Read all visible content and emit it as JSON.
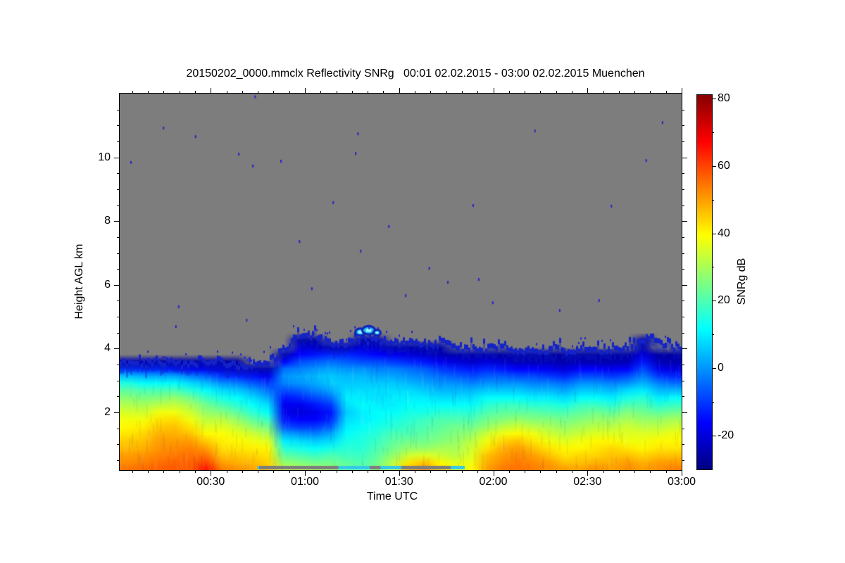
{
  "chart_data": {
    "type": "heatmap",
    "title": "20150202_0000.mmclx Reflectivity SNRg   00:01 02.02.2015 - 03:00 02.02.2015 Muenchen",
    "xlabel": "Time UTC",
    "ylabel": "Height AGL km",
    "x_range": [
      "00:01",
      "03:00"
    ],
    "x_ticks": [
      {
        "label": "00:30",
        "minute": 30
      },
      {
        "label": "01:00",
        "minute": 60
      },
      {
        "label": "01:30",
        "minute": 90
      },
      {
        "label": "02:00",
        "minute": 120
      },
      {
        "label": "02:30",
        "minute": 150
      },
      {
        "label": "03:00",
        "minute": 180
      }
    ],
    "x_minor_interval_min": 5,
    "y_range_km": [
      0.19,
      12
    ],
    "y_ticks_km": [
      2,
      4,
      6,
      8,
      10
    ],
    "y_minor_interval_km": 0.5,
    "colorbar": {
      "label": "SNRg dB",
      "range_db": [
        -30,
        81
      ],
      "ticks_db": [
        80,
        60,
        40,
        20,
        0,
        -20
      ],
      "minor_interval_db": 10,
      "palette": "jet"
    },
    "no_signal_color": "#7d7d7d",
    "speck_color": "#2323c8",
    "fringe_color": "#1423c8",
    "time_cols": 36,
    "height_rows": 20,
    "row_height_km_min": 0.2,
    "row_height_km_max": 4.5,
    "cloud_top_km": [
      3.55,
      3.5,
      3.55,
      3.6,
      3.5,
      3.6,
      3.65,
      3.5,
      3.45,
      3.5,
      3.9,
      4.4,
      4.45,
      4.2,
      4.15,
      4.3,
      4.25,
      4.2,
      4.25,
      4.1,
      4.2,
      4.05,
      4.0,
      4.0,
      4.0,
      3.95,
      3.95,
      4.0,
      3.95,
      4.05,
      4.0,
      4.0,
      4.05,
      4.45,
      4.1,
      4.05
    ],
    "snr_grid_db": [
      [
        55,
        52,
        50,
        47,
        45,
        42,
        40,
        38,
        35,
        31,
        27,
        22,
        15,
        5,
        -10,
        -25,
        null,
        null,
        null,
        null
      ],
      [
        56,
        53,
        51,
        48,
        46,
        44,
        41,
        38,
        34,
        30,
        25,
        20,
        12,
        3,
        -12,
        -25,
        null,
        null,
        null,
        null
      ],
      [
        57,
        55,
        53,
        51,
        50,
        48,
        45,
        42,
        38,
        32,
        26,
        20,
        12,
        2,
        -12,
        -25,
        null,
        null,
        null,
        null
      ],
      [
        58,
        56,
        54,
        52,
        50,
        48,
        46,
        43,
        38,
        33,
        28,
        20,
        12,
        2,
        -14,
        -26,
        null,
        null,
        null,
        null
      ],
      [
        57,
        56,
        55,
        53,
        50,
        46,
        42,
        38,
        34,
        30,
        24,
        16,
        8,
        -2,
        -16,
        -26,
        null,
        null,
        null,
        null
      ],
      [
        66,
        60,
        55,
        50,
        45,
        40,
        36,
        32,
        28,
        24,
        18,
        12,
        5,
        -5,
        -18,
        -26,
        null,
        null,
        null,
        null
      ],
      [
        54,
        50,
        46,
        43,
        41,
        39,
        36,
        32,
        26,
        20,
        14,
        8,
        0,
        -10,
        -20,
        -26,
        null,
        null,
        null,
        null
      ],
      [
        52,
        48,
        45,
        42,
        40,
        37,
        33,
        28,
        22,
        16,
        12,
        6,
        -2,
        -12,
        -22,
        -26,
        null,
        null,
        null,
        null
      ],
      [
        50,
        47,
        44,
        41,
        38,
        34,
        28,
        22,
        16,
        12,
        8,
        2,
        -6,
        -14,
        -24,
        null,
        null,
        null,
        null,
        null
      ],
      [
        46,
        44,
        42,
        40,
        36,
        30,
        24,
        18,
        12,
        8,
        2,
        -4,
        -10,
        -18,
        -25,
        null,
        null,
        null,
        null,
        null
      ],
      [
        34,
        28,
        22,
        16,
        10,
        2,
        -8,
        -14,
        -18,
        -18,
        -14,
        -8,
        -2,
        0,
        -4,
        -16,
        -25,
        null,
        null,
        null
      ],
      [
        32,
        26,
        20,
        14,
        8,
        0,
        -10,
        -16,
        -20,
        -18,
        -12,
        -6,
        0,
        2,
        -2,
        -8,
        -16,
        -20,
        -26,
        null
      ],
      [
        30,
        24,
        18,
        12,
        6,
        -2,
        -10,
        -16,
        -18,
        -14,
        -8,
        -2,
        2,
        4,
        0,
        -6,
        -14,
        -22,
        -26,
        null
      ],
      [
        28,
        24,
        20,
        14,
        8,
        2,
        -6,
        -12,
        -14,
        -10,
        -4,
        2,
        6,
        6,
        2,
        -4,
        -12,
        -24,
        null,
        null
      ],
      [
        24,
        22,
        18,
        16,
        14,
        12,
        10,
        8,
        6,
        8,
        10,
        8,
        6,
        4,
        0,
        -6,
        -12,
        -24,
        null,
        null
      ],
      [
        22,
        20,
        18,
        16,
        15,
        14,
        12,
        10,
        10,
        12,
        10,
        8,
        6,
        4,
        0,
        -8,
        -14,
        -20,
        -26,
        null
      ],
      [
        26,
        24,
        22,
        20,
        18,
        16,
        14,
        12,
        12,
        10,
        8,
        8,
        6,
        2,
        -2,
        -8,
        -16,
        -22,
        -26,
        null
      ],
      [
        36,
        32,
        28,
        24,
        22,
        20,
        16,
        14,
        12,
        10,
        10,
        8,
        6,
        2,
        -2,
        -10,
        -18,
        -25,
        null,
        null
      ],
      [
        48,
        42,
        34,
        28,
        24,
        20,
        18,
        16,
        14,
        12,
        10,
        8,
        4,
        0,
        -4,
        -12,
        -20,
        -25,
        null,
        null
      ],
      [
        52,
        46,
        36,
        28,
        24,
        22,
        20,
        18,
        14,
        12,
        10,
        6,
        2,
        -2,
        -6,
        -14,
        -22,
        -26,
        null,
        null
      ],
      [
        44,
        40,
        34,
        30,
        26,
        24,
        22,
        20,
        16,
        12,
        8,
        4,
        0,
        -4,
        -10,
        -18,
        -24,
        -26,
        null,
        null
      ],
      [
        38,
        36,
        32,
        30,
        28,
        26,
        24,
        20,
        16,
        12,
        8,
        4,
        0,
        -6,
        -12,
        -20,
        -25,
        null,
        null,
        null
      ],
      [
        40,
        38,
        36,
        34,
        32,
        28,
        24,
        20,
        16,
        12,
        8,
        4,
        -2,
        -8,
        -14,
        -22,
        -25,
        null,
        null,
        null
      ],
      [
        50,
        48,
        46,
        42,
        38,
        34,
        28,
        24,
        20,
        16,
        12,
        6,
        0,
        -6,
        -12,
        -20,
        -25,
        null,
        null,
        null
      ],
      [
        54,
        52,
        50,
        48,
        44,
        38,
        32,
        26,
        22,
        18,
        12,
        6,
        0,
        -6,
        -14,
        -22,
        -26,
        null,
        null,
        null
      ],
      [
        55,
        54,
        52,
        50,
        46,
        40,
        34,
        28,
        22,
        18,
        12,
        6,
        0,
        -8,
        -16,
        -24,
        -26,
        null,
        null,
        null
      ],
      [
        54,
        52,
        50,
        46,
        42,
        38,
        32,
        26,
        22,
        16,
        10,
        4,
        -2,
        -8,
        -16,
        -24,
        -26,
        null,
        null,
        null
      ],
      [
        52,
        50,
        46,
        42,
        38,
        34,
        30,
        26,
        20,
        16,
        10,
        4,
        -2,
        -10,
        -18,
        -24,
        -26,
        null,
        null,
        null
      ],
      [
        50,
        46,
        42,
        40,
        36,
        32,
        28,
        24,
        20,
        14,
        8,
        2,
        -4,
        -12,
        -20,
        -25,
        -26,
        null,
        null,
        null
      ],
      [
        50,
        46,
        44,
        40,
        38,
        34,
        30,
        26,
        22,
        18,
        12,
        6,
        0,
        -8,
        -16,
        -24,
        -26,
        null,
        null,
        null
      ],
      [
        52,
        48,
        44,
        42,
        40,
        36,
        32,
        28,
        24,
        18,
        12,
        6,
        0,
        -8,
        -16,
        -25,
        -26,
        null,
        null,
        null
      ],
      [
        50,
        48,
        46,
        44,
        40,
        36,
        32,
        28,
        22,
        16,
        10,
        4,
        -2,
        -10,
        -18,
        -25,
        -26,
        null,
        null,
        null
      ],
      [
        52,
        50,
        46,
        42,
        38,
        36,
        34,
        30,
        26,
        20,
        14,
        8,
        0,
        -8,
        -16,
        -24,
        -26,
        null,
        null,
        null
      ],
      [
        50,
        48,
        44,
        40,
        38,
        36,
        32,
        28,
        24,
        20,
        16,
        10,
        4,
        -2,
        -8,
        -14,
        -20,
        -24,
        -26,
        null
      ],
      [
        52,
        50,
        46,
        42,
        40,
        36,
        32,
        28,
        22,
        16,
        10,
        4,
        -2,
        -10,
        -18,
        -24,
        -26,
        null,
        null,
        null
      ],
      [
        54,
        50,
        46,
        42,
        40,
        38,
        34,
        30,
        24,
        18,
        12,
        4,
        -4,
        -12,
        -20,
        -25,
        -26,
        null,
        null,
        null
      ]
    ],
    "noise_specks": [
      [
        0.078,
        10.92
      ],
      [
        0.241,
        11.9
      ],
      [
        0.424,
        10.74
      ],
      [
        0.739,
        10.83
      ],
      [
        0.966,
        11.09
      ],
      [
        0.02,
        9.84
      ],
      [
        0.135,
        10.65
      ],
      [
        0.212,
        10.1
      ],
      [
        0.287,
        9.88
      ],
      [
        0.237,
        9.73
      ],
      [
        0.42,
        10.12
      ],
      [
        0.38,
        8.58
      ],
      [
        0.32,
        7.36
      ],
      [
        0.479,
        7.83
      ],
      [
        0.429,
        7.06
      ],
      [
        0.551,
        6.52
      ],
      [
        0.629,
        8.49
      ],
      [
        0.639,
        6.17
      ],
      [
        0.584,
        6.08
      ],
      [
        0.664,
        5.44
      ],
      [
        0.105,
        5.31
      ],
      [
        0.1,
        4.69
      ],
      [
        0.444,
        4.65
      ],
      [
        0.937,
        9.9
      ],
      [
        0.875,
        8.47
      ],
      [
        0.783,
        5.2
      ],
      [
        0.853,
        5.51
      ],
      [
        0.342,
        5.88
      ],
      [
        0.509,
        5.66
      ],
      [
        0.226,
        4.89
      ]
    ],
    "cloud_blobs": [
      {
        "x_frac": 0.428,
        "km": 4.52,
        "rx": 7,
        "ry": 5
      },
      {
        "x_frac": 0.443,
        "km": 4.58,
        "rx": 9,
        "ry": 6
      },
      {
        "x_frac": 0.458,
        "km": 4.5,
        "rx": 5,
        "ry": 4
      }
    ],
    "bottom_cyan_band_frac": [
      0.245,
      0.614
    ],
    "bottom_gray_strips_frac": [
      [
        0.248,
        0.389
      ],
      [
        0.445,
        0.464
      ],
      [
        0.501,
        0.589
      ]
    ]
  }
}
